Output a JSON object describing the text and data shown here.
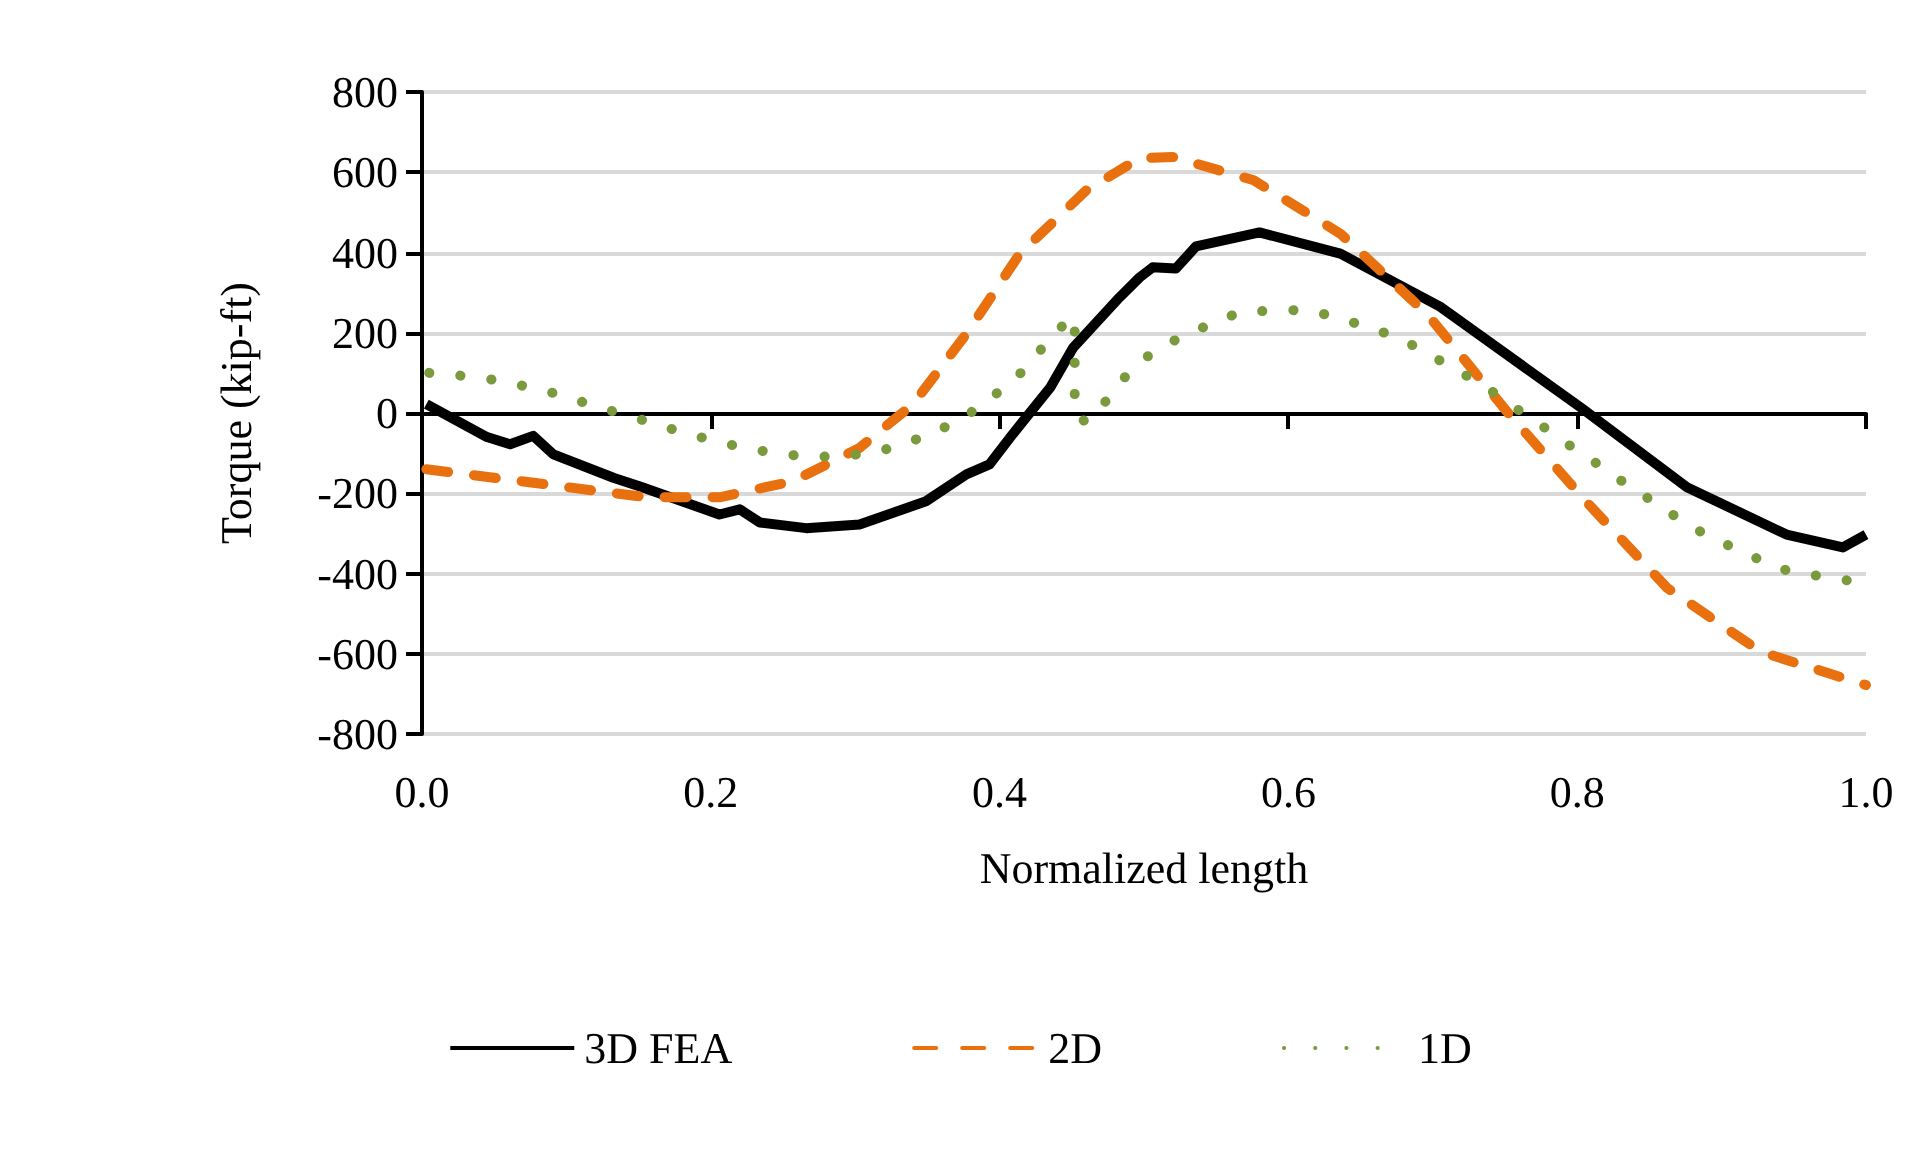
{
  "chart_data": {
    "type": "line",
    "xlabel": "Normalized length",
    "ylabel": "Torque (kip-ft)",
    "xlim": [
      0,
      1
    ],
    "xticks": [
      {
        "value": 0,
        "label": "0.0"
      },
      {
        "value": 0.2,
        "label": "0.2"
      },
      {
        "value": 0.4,
        "label": "0.4"
      },
      {
        "value": 0.6,
        "label": "0.6"
      },
      {
        "value": 0.8,
        "label": "0.8"
      },
      {
        "value": 1,
        "label": "1.0"
      }
    ],
    "ylim": [
      -800,
      800
    ],
    "yticks": [
      -800,
      -600,
      -400,
      -200,
      0,
      200,
      400,
      600,
      800
    ],
    "grid": "y",
    "legend": "bottom",
    "marker": "none",
    "series": [
      {
        "name": "3D FEA",
        "color": "#000000",
        "line_style": "solid",
        "x": [
          0.003,
          0.045,
          0.061,
          0.077,
          0.091,
          0.133,
          0.151,
          0.206,
          0.22,
          0.234,
          0.266,
          0.303,
          0.349,
          0.377,
          0.393,
          0.409,
          0.435,
          0.451,
          0.483,
          0.497,
          0.506,
          0.522,
          0.536,
          0.58,
          0.636,
          0.705,
          0.802,
          0.876,
          0.945,
          0.984,
          1.0
        ],
        "values": [
          22,
          -60,
          -78,
          -57,
          -103,
          -162,
          -183,
          -253,
          -240,
          -273,
          -287,
          -278,
          -220,
          -153,
          -128,
          -53,
          63,
          163,
          288,
          338,
          363,
          360,
          415,
          450,
          397,
          265,
          15,
          -185,
          -303,
          -335,
          -303
        ]
      },
      {
        "name": "2D",
        "color": "#e8700e",
        "line_style": "dashed",
        "x": [
          0.003,
          0.086,
          0.155,
          0.206,
          0.257,
          0.303,
          0.34,
          0.377,
          0.414,
          0.46,
          0.497,
          0.52,
          0.576,
          0.636,
          0.696,
          0.751,
          0.806,
          0.862,
          0.927,
          1.0
        ],
        "values": [
          -140,
          -178,
          -210,
          -210,
          -170,
          -87,
          22,
          197,
          397,
          555,
          635,
          638,
          580,
          447,
          247,
          5,
          -220,
          -435,
          -595,
          -678
        ]
      },
      {
        "name": "1D",
        "color": "#7a9a3e",
        "line_style": "dotted",
        "x": [
          0.005,
          0.027,
          0.049,
          0.071,
          0.093,
          0.115,
          0.136,
          0.158,
          0.179,
          0.201,
          0.223,
          0.245,
          0.268,
          0.29,
          0.312,
          0.334,
          0.355,
          0.375,
          0.393,
          0.411,
          0.426,
          0.44,
          0.452,
          0.452,
          0.452,
          0.452,
          0.46,
          0.475,
          0.488,
          0.506,
          0.526,
          0.547,
          0.567,
          0.59,
          0.613,
          0.634,
          0.656,
          0.677,
          0.697,
          0.716,
          0.736,
          0.754,
          0.773,
          0.791,
          0.81,
          0.829,
          0.848,
          0.866,
          0.886,
          0.906,
          0.926,
          0.947,
          0.969,
          0.992
        ],
        "values": [
          100,
          93,
          83,
          67,
          48,
          23,
          0,
          -23,
          -47,
          -68,
          -87,
          -100,
          -110,
          -107,
          -100,
          -77,
          -48,
          -12,
          35,
          85,
          147,
          207,
          240,
          158,
          75,
          -3,
          -23,
          35,
          95,
          152,
          190,
          223,
          252,
          255,
          257,
          238,
          213,
          187,
          147,
          108,
          67,
          20,
          -25,
          -72,
          -117,
          -165,
          -210,
          -253,
          -297,
          -332,
          -365,
          -395,
          -407,
          -420
        ]
      }
    ]
  }
}
